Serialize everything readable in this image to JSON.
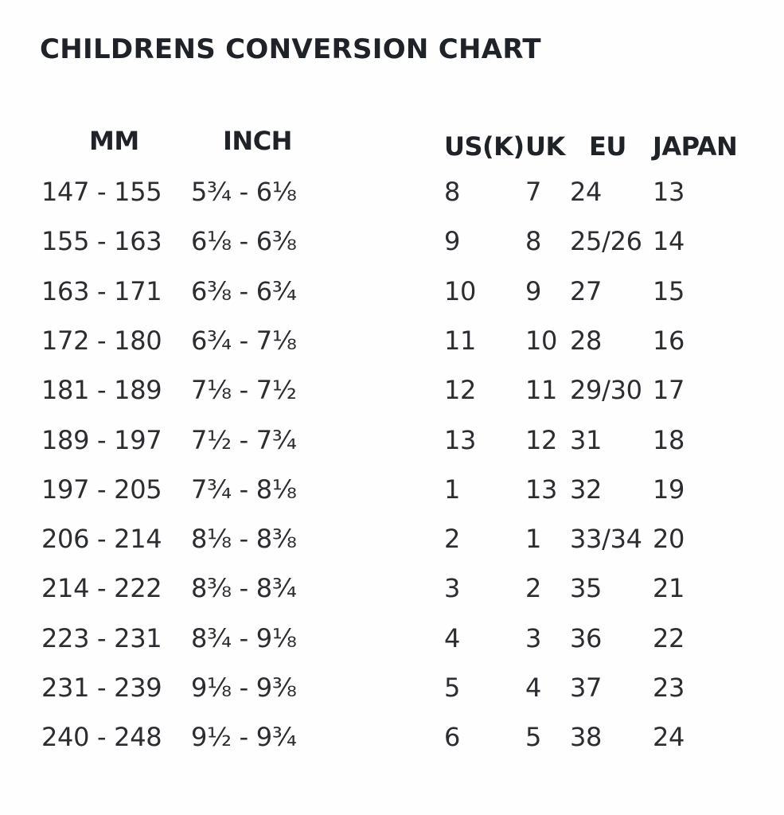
{
  "title": "CHILDRENS CONVERSION CHART",
  "headers": {
    "mm": "MM",
    "inch": "INCH",
    "us": "US(K)",
    "uk": "UK",
    "eu": "EU",
    "japan": "JAPAN"
  },
  "rows": [
    {
      "mm": "147 - 155",
      "inch": "5¾ - 6⅛",
      "us": "8",
      "uk": "7",
      "eu": "24",
      "japan": "13"
    },
    {
      "mm": "155 - 163",
      "inch": "6⅛ - 6⅜",
      "us": "9",
      "uk": "8",
      "eu": "25/26",
      "japan": "14"
    },
    {
      "mm": "163 - 171",
      "inch": "6⅜ - 6¾",
      "us": "10",
      "uk": "9",
      "eu": "27",
      "japan": "15"
    },
    {
      "mm": "172 - 180",
      "inch": "6¾ - 7⅛",
      "us": "11",
      "uk": "10",
      "eu": "28",
      "japan": "16"
    },
    {
      "mm": "181 - 189",
      "inch": "7⅛ - 7½",
      "us": "12",
      "uk": "11",
      "eu": "29/30",
      "japan": "17"
    },
    {
      "mm": "189 - 197",
      "inch": "7½ - 7¾",
      "us": "13",
      "uk": "12",
      "eu": "31",
      "japan": "18"
    },
    {
      "mm": "197 - 205",
      "inch": "7¾ - 8⅛",
      "us": "1",
      "uk": "13",
      "eu": "32",
      "japan": "19"
    },
    {
      "mm": "206 - 214",
      "inch": "8⅛ - 8⅜",
      "us": "2",
      "uk": "1",
      "eu": "33/34",
      "japan": "20"
    },
    {
      "mm": "214 - 222",
      "inch": "8⅜ - 8¾",
      "us": "3",
      "uk": "2",
      "eu": "35",
      "japan": "21"
    },
    {
      "mm": "223 - 231",
      "inch": "8¾ - 9⅛",
      "us": "4",
      "uk": "3",
      "eu": "36",
      "japan": "22"
    },
    {
      "mm": "231 - 239",
      "inch": "9⅛ - 9⅜",
      "us": "5",
      "uk": "4",
      "eu": "37",
      "japan": "23"
    },
    {
      "mm": "240 - 248",
      "inch": "9½ - 9¾",
      "us": "6",
      "uk": "5",
      "eu": "38",
      "japan": "24"
    }
  ]
}
